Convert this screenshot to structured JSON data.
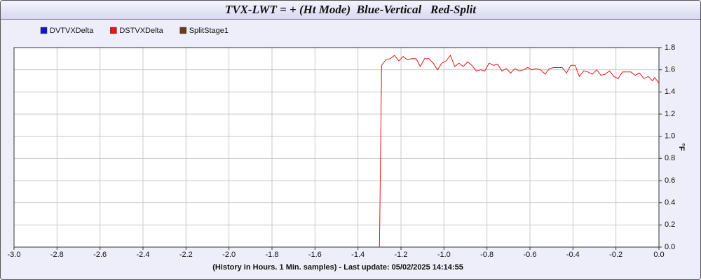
{
  "chart_data": {
    "type": "line",
    "title": "TVX-LWT = + (Ht Mode)  Blue-Vertical   Red-Split",
    "x_label": "(History in Hours. 1 Min. samples) - Last update: 05/02/2025 14:14:55",
    "y_label": "°F",
    "x": [
      -1.3,
      -1.29,
      -1.27,
      -1.25,
      -1.23,
      -1.21,
      -1.19,
      -1.17,
      -1.15,
      -1.13,
      -1.11,
      -1.09,
      -1.07,
      -1.05,
      -1.03,
      -1.01,
      -0.99,
      -0.97,
      -0.95,
      -0.93,
      -0.91,
      -0.89,
      -0.87,
      -0.85,
      -0.83,
      -0.81,
      -0.79,
      -0.77,
      -0.75,
      -0.73,
      -0.71,
      -0.69,
      -0.67,
      -0.65,
      -0.63,
      -0.61,
      -0.59,
      -0.57,
      -0.55,
      -0.53,
      -0.51,
      -0.49,
      -0.47,
      -0.45,
      -0.43,
      -0.41,
      -0.39,
      -0.37,
      -0.35,
      -0.33,
      -0.31,
      -0.29,
      -0.27,
      -0.25,
      -0.23,
      -0.21,
      -0.19,
      -0.17,
      -0.15,
      -0.13,
      -0.11,
      -0.09,
      -0.07,
      -0.05,
      -0.03,
      -0.02,
      0.0
    ],
    "series": [
      {
        "name": "DVTVXDelta",
        "color": "#1414c8",
        "values": [
          null,
          null,
          null,
          null,
          null,
          null,
          null,
          null,
          null,
          null,
          null,
          null,
          null,
          null,
          null,
          null,
          null,
          null,
          null,
          null,
          null,
          null,
          null,
          null,
          null,
          null,
          null,
          null,
          null,
          null,
          null,
          null,
          null,
          null,
          null,
          null,
          null,
          null,
          null,
          null,
          null,
          null,
          null,
          null,
          null,
          null,
          null,
          null,
          null,
          null,
          null,
          null,
          null,
          null,
          null,
          null,
          null,
          null,
          null,
          null,
          null,
          null,
          null,
          null,
          null,
          null,
          null
        ]
      },
      {
        "name": "DSTVXDelta",
        "color": "#e81414",
        "values": [
          0.0,
          1.64,
          1.69,
          1.7,
          1.73,
          1.68,
          1.72,
          1.69,
          1.7,
          1.7,
          1.63,
          1.7,
          1.7,
          1.66,
          1.6,
          1.66,
          1.68,
          1.73,
          1.63,
          1.66,
          1.63,
          1.67,
          1.64,
          1.59,
          1.6,
          1.59,
          1.66,
          1.64,
          1.65,
          1.59,
          1.61,
          1.57,
          1.61,
          1.59,
          1.6,
          1.62,
          1.6,
          1.61,
          1.6,
          1.56,
          1.61,
          1.62,
          1.62,
          1.62,
          1.57,
          1.64,
          1.64,
          1.54,
          1.59,
          1.58,
          1.56,
          1.6,
          1.55,
          1.56,
          1.59,
          1.54,
          1.52,
          1.58,
          1.58,
          1.58,
          1.55,
          1.57,
          1.52,
          1.54,
          1.5,
          1.53,
          1.48
        ]
      },
      {
        "name": "SplitStage1",
        "color": "#6b3a1e",
        "values": [
          null,
          null,
          null,
          null,
          null,
          null,
          null,
          null,
          null,
          null,
          null,
          null,
          null,
          null,
          null,
          null,
          null,
          null,
          null,
          null,
          null,
          null,
          null,
          null,
          null,
          null,
          null,
          null,
          null,
          null,
          null,
          null,
          null,
          null,
          null,
          null,
          null,
          null,
          null,
          null,
          null,
          null,
          null,
          null,
          null,
          null,
          null,
          null,
          null,
          null,
          null,
          null,
          null,
          null,
          null,
          null,
          null,
          null,
          null,
          null,
          null,
          null,
          null,
          null,
          null,
          null,
          null
        ]
      }
    ],
    "xlim": [
      -3.0,
      0.0
    ],
    "xticks": [
      {
        "value": -3.0,
        "label": "-3.0"
      },
      -2.8,
      -2.6,
      -2.4,
      -2.2,
      {
        "value": -2.0,
        "label": "-2.0"
      },
      -1.8,
      -1.6,
      -1.4,
      -1.2,
      {
        "value": -1.0,
        "label": "-1.0"
      },
      -0.8,
      -0.6,
      -0.4,
      -0.2,
      {
        "value": 0.0,
        "label": "0.0"
      }
    ],
    "ylim": [
      0.0,
      1.8
    ],
    "yticks": [
      {
        "value": 0.0,
        "label": "0.0"
      },
      0.2,
      0.4,
      0.6,
      0.8,
      {
        "value": 1.0,
        "label": "1.0"
      },
      1.2,
      1.4,
      1.6,
      1.8
    ],
    "grid": true
  }
}
